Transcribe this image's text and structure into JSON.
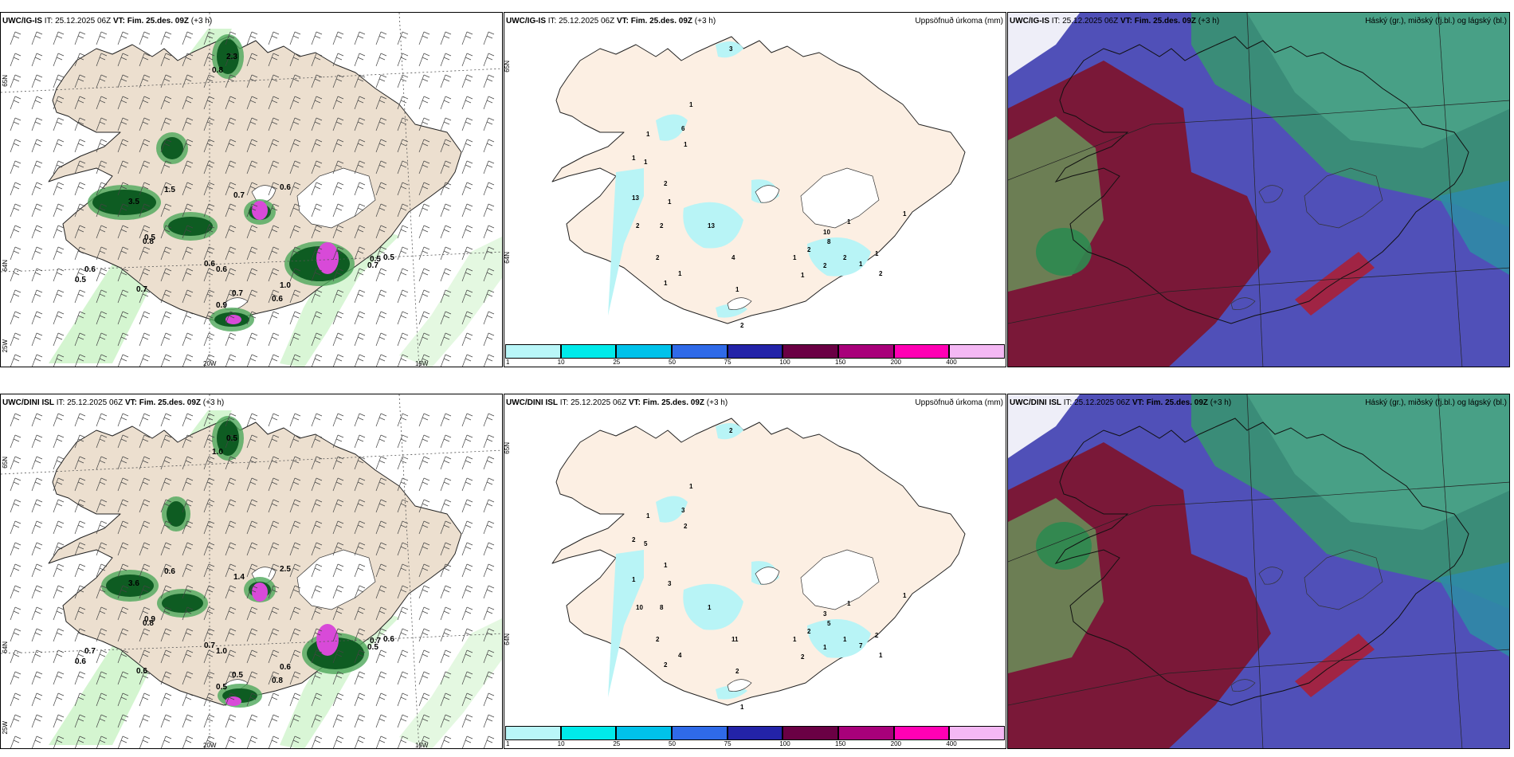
{
  "colors": {
    "land": "#ecdfcf",
    "land_light": "#fcefe3",
    "precip_cyan": "#b8f4f6",
    "green_light": "#c9f2c4",
    "green_dark": "#0e5c22",
    "magenta": "#d84ad8",
    "sky_high": "#3a8c78",
    "sky_mid": "#5050b8",
    "sky_low": "#7a1838"
  },
  "rows": [
    {
      "id": "igis",
      "panels": [
        {
          "model": "UWC/IG-IS",
          "it_label": "IT:",
          "it": "25.12.2025 06Z",
          "vt_label": "VT:",
          "vt": "Fim. 25.des. 09Z",
          "lead": "(+3 h)",
          "field": ""
        },
        {
          "model": "UWC/IG-IS",
          "it_label": "IT:",
          "it": "25.12.2025 06Z",
          "vt_label": "VT:",
          "vt": "Fim. 25.des. 09Z",
          "lead": "(+3 h)",
          "field": "Uppsöfnuð úrkoma (mm)"
        },
        {
          "model": "UWC/IG-IS",
          "it_label": "IT:",
          "it": "25.12.2025 06Z",
          "vt_label": "VT:",
          "vt": "Fim. 25.des. 09Z",
          "lead": "(+3 h)",
          "field": "Háský (gr.), miðský (fj.bl.) og lágský (bl.)"
        }
      ],
      "wind_labels": [
        "0.8",
        "2.3",
        "1.5",
        "3.5",
        "0.7",
        "0.6",
        "0.5",
        "0.8",
        "0.6",
        "0.5",
        "0.6",
        "0.7",
        "0.6",
        "0.5",
        "0.7",
        "0.9",
        "1.0",
        "0.6",
        "0.5",
        "0.7"
      ],
      "precip_labels": [
        "3",
        "1",
        "6",
        "1",
        "1",
        "1",
        "1",
        "2",
        "13",
        "1",
        "2",
        "2",
        "13",
        "2",
        "4",
        "1",
        "1",
        "1",
        "2",
        "10",
        "8",
        "2",
        "1",
        "2",
        "1",
        "2",
        "1",
        "1",
        "2",
        "1",
        "1"
      ]
    },
    {
      "id": "dini",
      "panels": [
        {
          "model": "UWC/DINI ISL",
          "it_label": "IT:",
          "it": "25.12.2025 06Z",
          "vt_label": "VT:",
          "vt": "Fim. 25.des. 09Z",
          "lead": "(+3 h)",
          "field": ""
        },
        {
          "model": "UWC/DINI ISL",
          "it_label": "IT:",
          "it": "25.12.2025 06Z",
          "vt_label": "VT:",
          "vt": "Fim. 25.des. 09Z",
          "lead": "(+3 h)",
          "field": "Uppsöfnuð úrkoma (mm)"
        },
        {
          "model": "UWC/DINI ISL",
          "it_label": "IT:",
          "it": "25.12.2025 06Z",
          "vt_label": "VT:",
          "vt": "Fim. 25.des. 09Z",
          "lead": "(+3 h)",
          "field": "Háský (gr.), miðský (fj.bl.) og lágský (bl.)"
        }
      ],
      "wind_labels": [
        "1.0",
        "0.5",
        "0.6",
        "3.6",
        "1.4",
        "2.5",
        "0.9",
        "0.8",
        "0.7",
        "0.6",
        "0.7",
        "0.6",
        "1.0",
        "0.7",
        "0.5",
        "0.5",
        "0.6",
        "0.8",
        "0.6",
        "0.5"
      ],
      "precip_labels": [
        "2",
        "1",
        "3",
        "1",
        "2",
        "5",
        "2",
        "1",
        "1",
        "3",
        "10",
        "8",
        "1",
        "2",
        "11",
        "4",
        "2",
        "2",
        "1",
        "3",
        "5",
        "2",
        "1",
        "1",
        "2",
        "1",
        "7",
        "2",
        "1",
        "1",
        "1"
      ]
    }
  ],
  "graticule": {
    "lat_labels": [
      "65N",
      "64N",
      "25W"
    ],
    "lon_labels": [
      "20W",
      "15W"
    ]
  },
  "colorbar": {
    "ticks": [
      "1",
      "10",
      "25",
      "50",
      "75",
      "100",
      "150",
      "200",
      "400"
    ],
    "colors": [
      "#b9f6f8",
      "#00eaea",
      "#00c2ea",
      "#2f6ae8",
      "#2323a8",
      "#6a0044",
      "#a8007a",
      "#ff00b4",
      "#f4b8f4"
    ]
  }
}
